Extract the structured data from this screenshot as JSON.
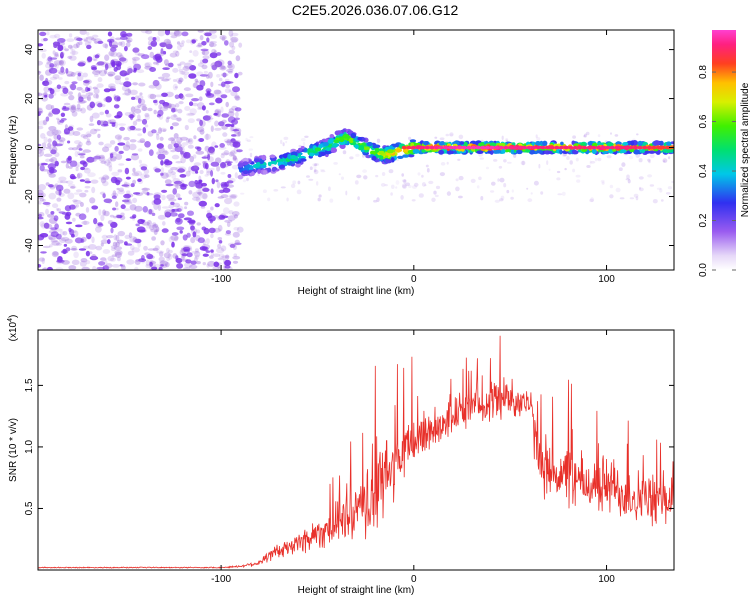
{
  "title": "C2E5.2026.036.07.06.G12",
  "colors": {
    "snr_line": "#e8302a",
    "frame": "#000000",
    "scatter_noise": "#a070e0",
    "scatter_noise_dark": "#7a30e8"
  },
  "chart_data": [
    {
      "type": "heatmap",
      "name": "spectrogram",
      "xlabel": "Height of straight line (km)",
      "ylabel": "Frequency (Hz)",
      "xlim": [
        -195,
        135
      ],
      "ylim": [
        -50,
        48
      ],
      "xticks": [
        -100,
        0,
        100
      ],
      "yticks": [
        -40,
        -20,
        0,
        20,
        40
      ],
      "grid": false,
      "colorbar": {
        "label": "Normalized spectral amplitude",
        "range": [
          0,
          0.97
        ],
        "ticks": [
          0.0,
          0.2,
          0.4,
          0.6,
          0.8
        ]
      },
      "track": {
        "x": [
          -90,
          -85,
          -80,
          -75,
          -70,
          -65,
          -60,
          -55,
          -50,
          -45,
          -40,
          -35,
          -30,
          -25,
          -20,
          -15,
          -10,
          -5,
          0,
          10,
          20,
          30,
          40,
          50,
          60,
          70,
          80,
          90,
          100,
          110,
          120,
          130,
          135
        ],
        "freq": [
          -9,
          -8,
          -7,
          -7,
          -6,
          -5,
          -4,
          -2,
          -1,
          0,
          3,
          4,
          2,
          0,
          -2,
          -3,
          -2,
          -1,
          0,
          0,
          0,
          0,
          0,
          0,
          0,
          0,
          0,
          0,
          0,
          0,
          0,
          0,
          0
        ],
        "amp": [
          0.35,
          0.4,
          0.45,
          0.45,
          0.5,
          0.5,
          0.5,
          0.55,
          0.55,
          0.55,
          0.6,
          0.65,
          0.6,
          0.65,
          0.7,
          0.75,
          0.8,
          0.85,
          0.9,
          0.92,
          0.95,
          0.95,
          0.95,
          0.92,
          0.92,
          0.9,
          0.9,
          0.9,
          0.92,
          0.9,
          0.88,
          0.85,
          0.85
        ]
      },
      "noise_region_x": [
        -195,
        -90
      ]
    },
    {
      "type": "line",
      "name": "snr",
      "xlabel": "Height of straight line (km)",
      "ylabel": "SNR (10 * v/v)",
      "y_multiplier": "(x10",
      "y_multiplier_exp": "4",
      "y_multiplier_close": ")",
      "xlim": [
        -195,
        135
      ],
      "ylim": [
        0,
        1.95
      ],
      "xticks": [
        -100,
        0,
        100
      ],
      "yticks": [
        0.5,
        1.0,
        1.5
      ],
      "ytick_labels": [
        "0.5",
        "1.0",
        "1.5"
      ],
      "series": [
        {
          "name": "SNR",
          "x": [
            -195,
            -180,
            -160,
            -140,
            -120,
            -100,
            -90,
            -80,
            -75,
            -70,
            -65,
            -60,
            -55,
            -50,
            -45,
            -40,
            -35,
            -30,
            -25,
            -20,
            -15,
            -10,
            -5,
            0,
            5,
            10,
            15,
            20,
            25,
            30,
            35,
            40,
            45,
            50,
            55,
            60,
            65,
            70,
            75,
            80,
            85,
            90,
            95,
            100,
            105,
            110,
            115,
            120,
            125,
            130,
            135
          ],
          "values": [
            0.02,
            0.02,
            0.02,
            0.02,
            0.02,
            0.02,
            0.03,
            0.06,
            0.12,
            0.15,
            0.18,
            0.22,
            0.26,
            0.3,
            0.34,
            0.38,
            0.42,
            0.45,
            0.5,
            0.65,
            0.75,
            0.85,
            0.95,
            1.05,
            1.1,
            1.15,
            1.2,
            1.25,
            1.3,
            1.32,
            1.35,
            1.38,
            1.4,
            1.4,
            1.38,
            1.35,
            0.9,
            0.82,
            0.78,
            0.75,
            0.72,
            0.7,
            0.68,
            0.7,
            0.65,
            0.62,
            0.6,
            0.58,
            0.56,
            0.55,
            0.6
          ],
          "variability": [
            0.005,
            0.005,
            0.005,
            0.005,
            0.005,
            0.005,
            0.01,
            0.03,
            0.06,
            0.08,
            0.1,
            0.12,
            0.14,
            0.16,
            0.18,
            0.2,
            0.25,
            0.28,
            0.35,
            0.45,
            0.4,
            0.35,
            0.3,
            0.25,
            0.25,
            0.22,
            0.2,
            0.2,
            0.18,
            0.18,
            0.2,
            0.2,
            0.22,
            0.2,
            0.18,
            0.2,
            0.3,
            0.3,
            0.3,
            0.3,
            0.3,
            0.28,
            0.28,
            0.3,
            0.3,
            0.28,
            0.28,
            0.25,
            0.25,
            0.25,
            0.25
          ]
        }
      ]
    }
  ]
}
